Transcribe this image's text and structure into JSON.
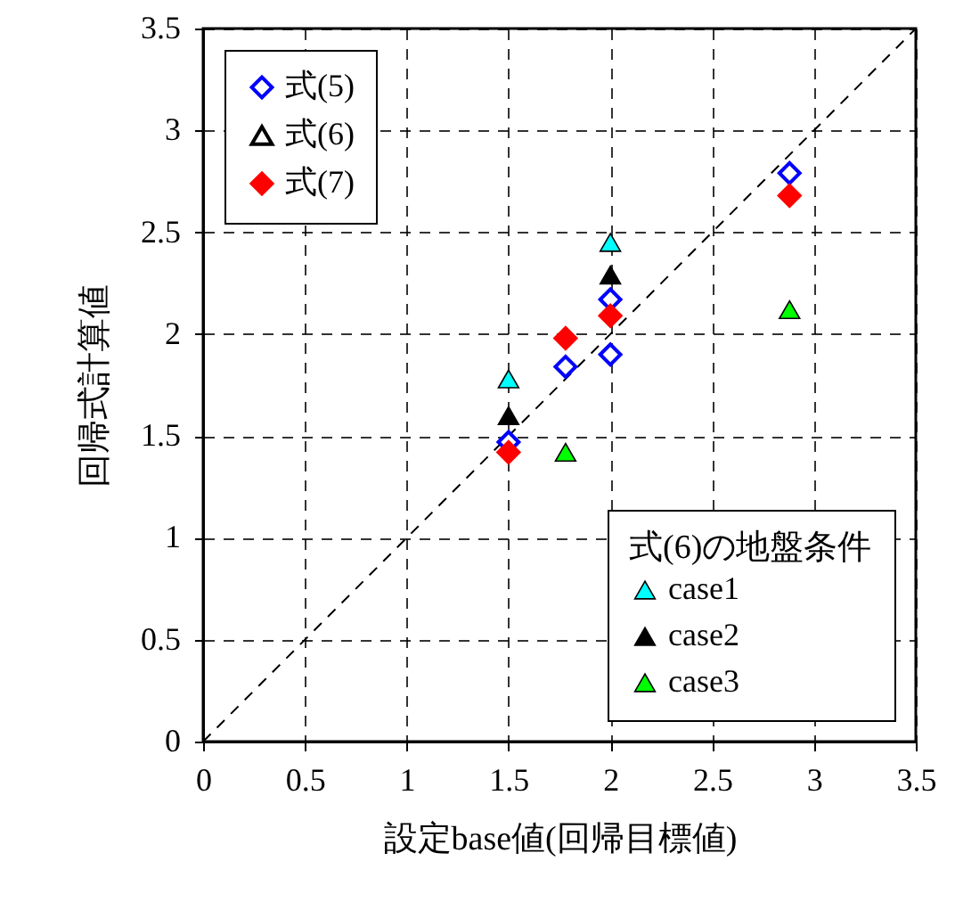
{
  "chart_data": {
    "type": "scatter",
    "xlabel": "設定base値(回帰目標値)",
    "ylabel": "回帰式計算値",
    "legend_title": "式(6)の地盤条件",
    "legend": "top left",
    "xlim": [
      0,
      3.5
    ],
    "ylim": [
      0,
      3.5
    ],
    "xticks": [
      0,
      0.5,
      1,
      1.5,
      2,
      2.5,
      3,
      3.5
    ],
    "yticks": [
      0,
      0.5,
      1,
      1.5,
      2,
      2.5,
      3,
      3.5
    ],
    "grid": true,
    "series": [
      {
        "name": "式(5)",
        "color": "#0000ff",
        "marker": "diamond",
        "x": [
          1.5,
          1.78,
          2.0,
          2.0,
          2.88
        ],
        "values": [
          1.47,
          1.84,
          1.9,
          2.17,
          2.79
        ]
      },
      {
        "name": "式(6)",
        "color": "#000000",
        "marker": "triangle"
      },
      {
        "name": "式(7)",
        "color": "#ff0000",
        "marker": "diamond",
        "x": [
          1.5,
          1.78,
          2.0,
          2.88
        ],
        "values": [
          1.42,
          1.98,
          2.09,
          2.68
        ]
      },
      {
        "name": "case1",
        "color": "#00ffff",
        "marker": "triangle",
        "x": [
          1.5,
          2.0
        ],
        "values": [
          1.78,
          2.45
        ]
      },
      {
        "name": "case2",
        "color": "#000000",
        "marker": "triangle",
        "x": [
          1.5,
          2.0
        ],
        "values": [
          1.6,
          2.29
        ]
      },
      {
        "name": "case3",
        "color": "#00ff00",
        "marker": "triangle",
        "x": [
          1.78,
          2.88
        ],
        "values": [
          1.42,
          2.12
        ]
      },
      {
        "type": "line",
        "color": "#000000",
        "line_style": "dashed",
        "x": [
          0,
          3.5
        ],
        "values": [
          0,
          3.5
        ]
      }
    ]
  }
}
